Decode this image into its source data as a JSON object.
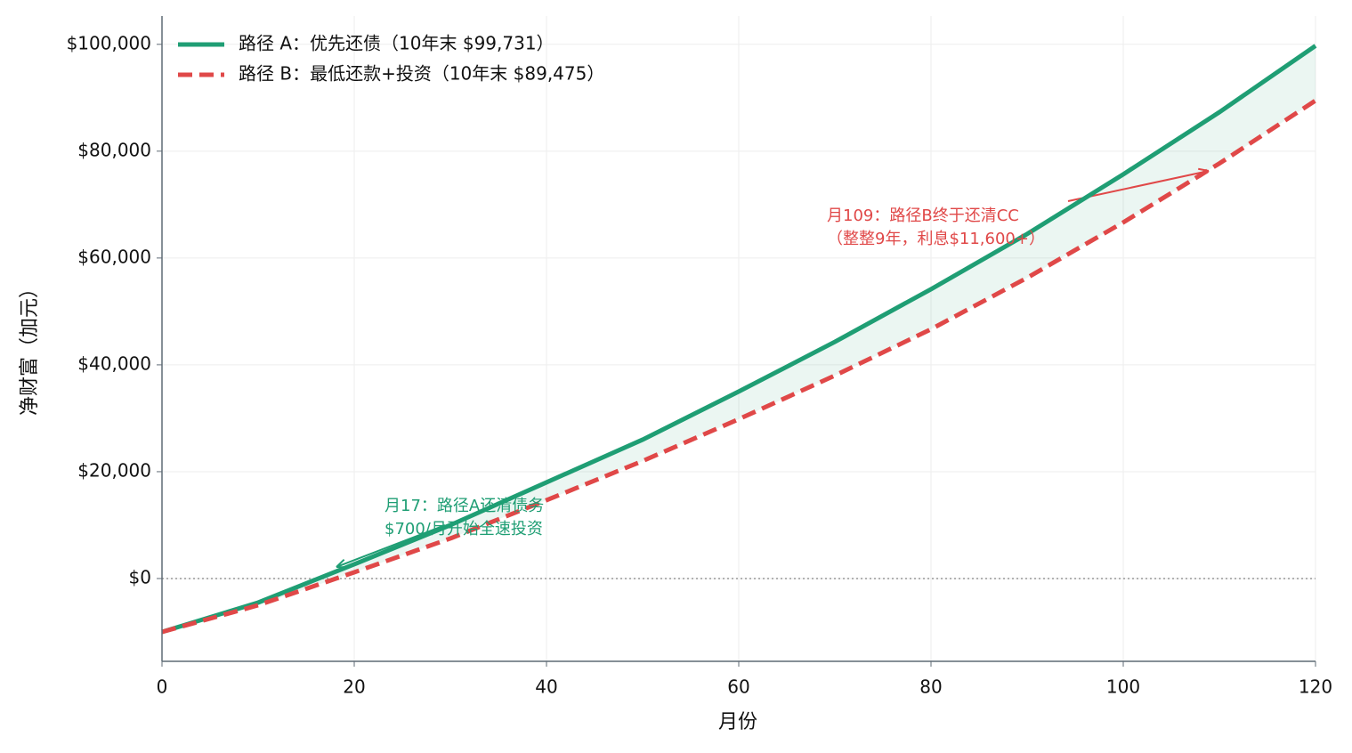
{
  "chart_data": {
    "type": "line",
    "x_label": "月份",
    "y_label": "净财富（加元）",
    "x": [
      0,
      10,
      20,
      30,
      40,
      50,
      60,
      70,
      80,
      90,
      100,
      110,
      120
    ],
    "series": [
      {
        "name": "路径 A：优先还债（10年末 $99,731）",
        "color": "#1f9e74",
        "style": "solid",
        "values": [
          -10000,
          -4500,
          2667,
          10000,
          18000,
          26000,
          35000,
          44300,
          54167,
          64500,
          75667,
          87300,
          99731
        ]
      },
      {
        "name": "路径 B：最低还款+投资（10年末 $89,475）",
        "color": "#e04848",
        "style": "dashed",
        "values": [
          -10000,
          -5000,
          1167,
          7500,
          14667,
          22000,
          29833,
          38000,
          46667,
          56300,
          66667,
          77700,
          89475
        ]
      }
    ],
    "xlim": [
      0,
      120
    ],
    "xticks": [
      0,
      20,
      40,
      60,
      80,
      100,
      120
    ],
    "ylim": [
      -15500,
      105300
    ],
    "yticks": [
      {
        "value": 0,
        "label": "$0"
      },
      {
        "value": 20000,
        "label": "$20,000"
      },
      {
        "value": 40000,
        "label": "$40,000"
      },
      {
        "value": 60000,
        "label": "$60,000"
      },
      {
        "value": 80000,
        "label": "$80,000"
      },
      {
        "value": 100000,
        "label": "$100,000"
      }
    ],
    "grid": true,
    "legend": "upper-left",
    "annotations": [
      {
        "lines": [
          "月17：路径A还清债务",
          "$700/月开始全速投资"
        ],
        "color": "#1f9e74"
      },
      {
        "lines": [
          "月109：路径B终于还清CC",
          "（整整9年，利息$11,600+）"
        ],
        "color": "#e04848"
      }
    ]
  }
}
